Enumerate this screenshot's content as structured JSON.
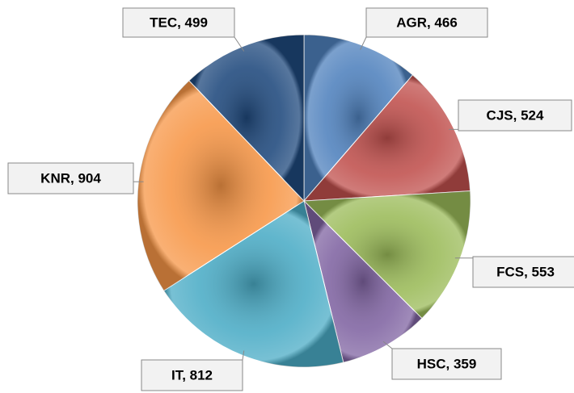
{
  "chart_data": {
    "type": "pie",
    "categories": [
      "AGR",
      "CJS",
      "FCS",
      "HSC",
      "IT",
      "KNR",
      "TEC"
    ],
    "values": [
      466,
      524,
      553,
      359,
      812,
      904,
      499
    ],
    "value_labels": [
      "AGR, 466",
      "CJS, 524",
      "FCS, 553",
      "HSC, 359",
      "IT, 812",
      "KNR, 904",
      "TEC, 499"
    ],
    "colors": [
      "#4f81bd",
      "#c0504d",
      "#9bbb59",
      "#8064a2",
      "#4bacc6",
      "#f79646",
      "#1f497d"
    ]
  }
}
